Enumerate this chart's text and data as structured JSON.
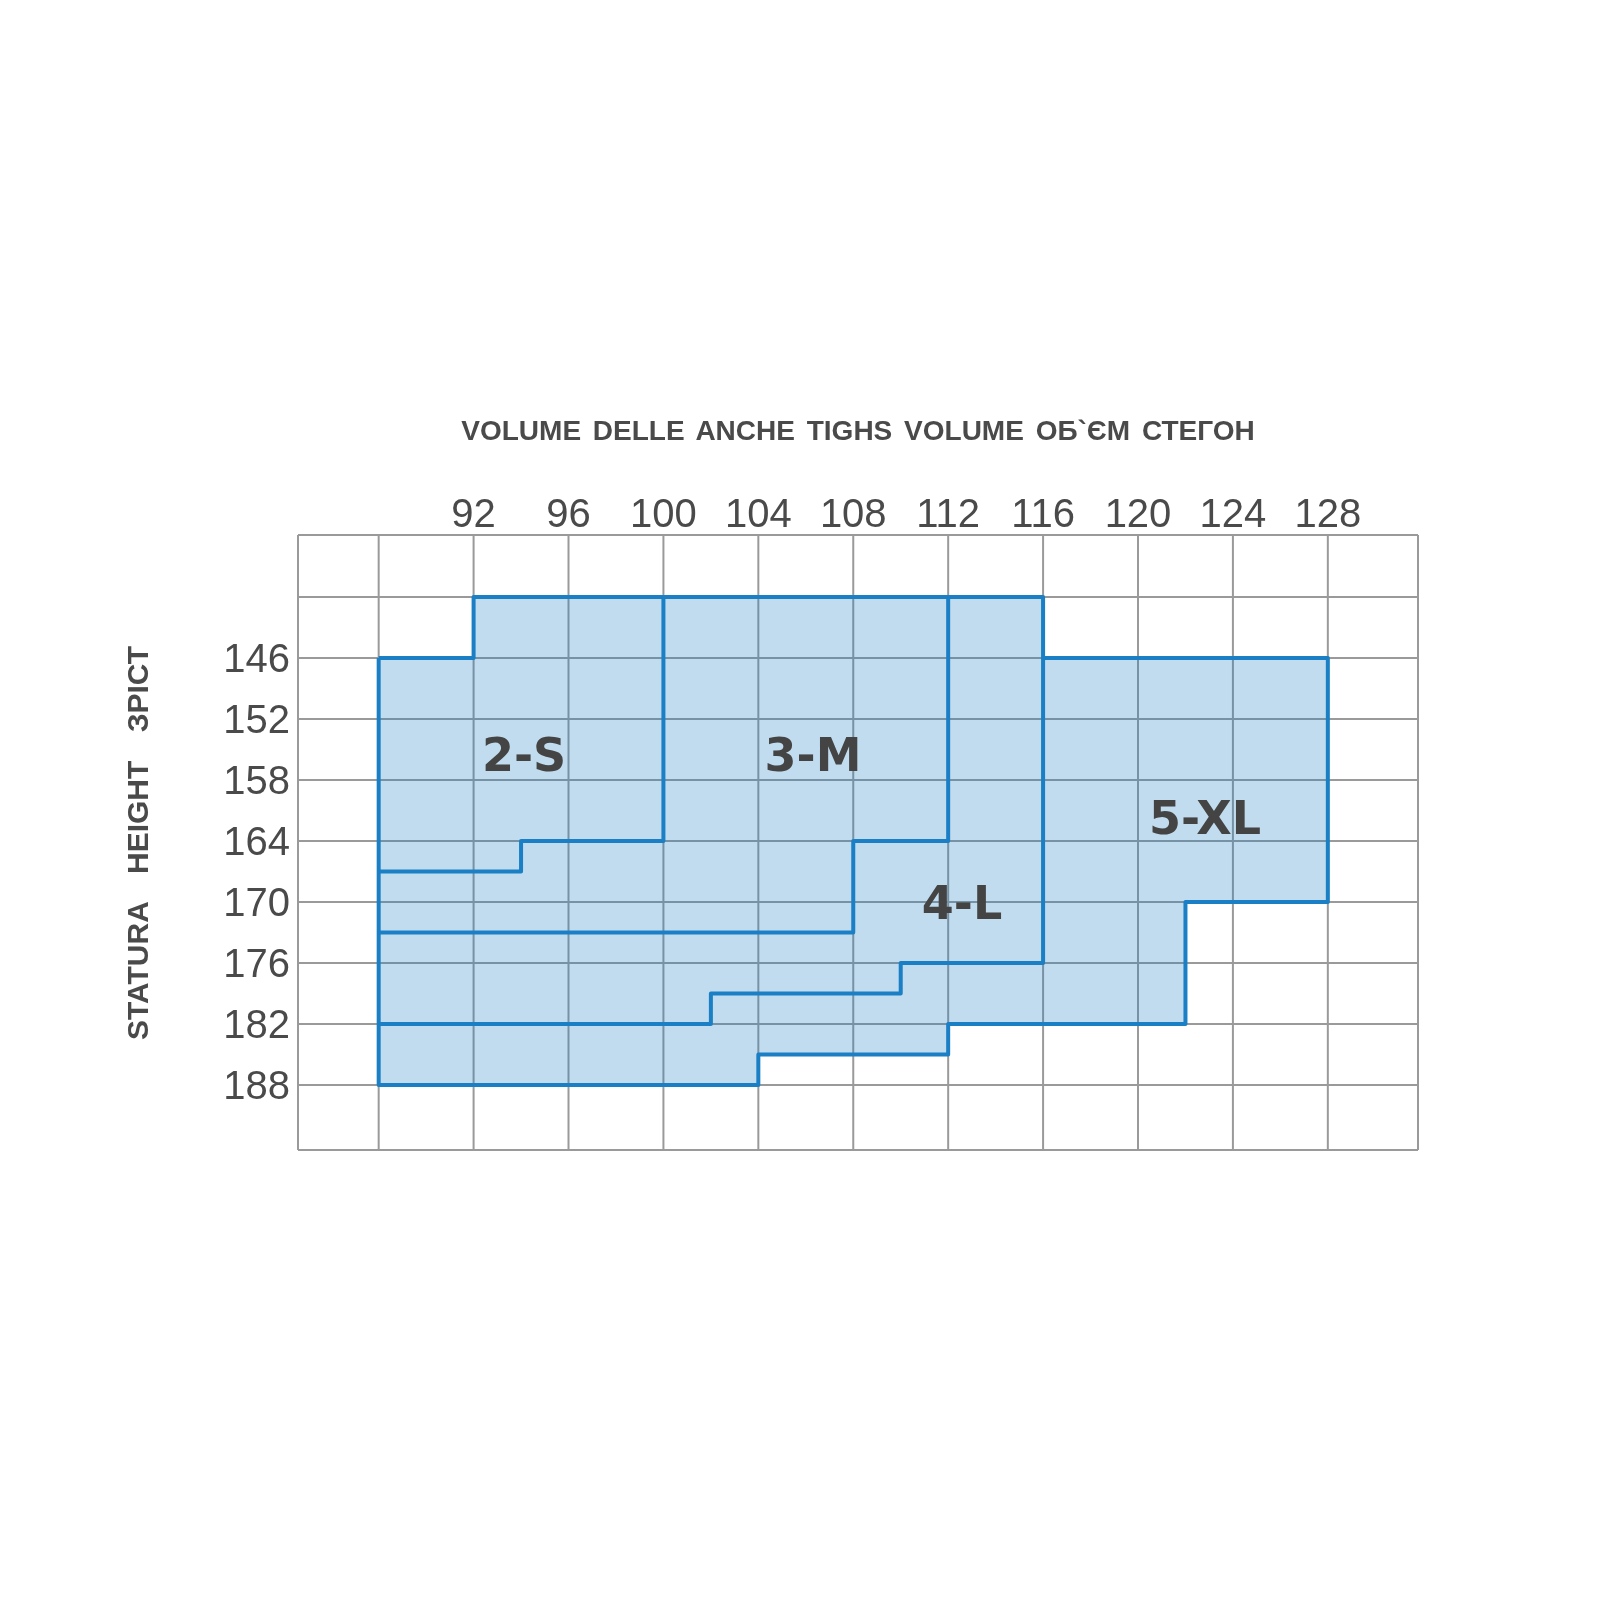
{
  "chart_data": {
    "type": "line",
    "xlabel": "VOLUME DELLE ANCHE TIGHS VOLUME ОБ`ЄМ СТЕГОН",
    "ylabel": "STATURA HEIGHT ЗРІСТ",
    "xlim": [
      84.6,
      131.8
    ],
    "ylim": [
      194.4,
      133.9
    ],
    "xticks": [
      {
        "value": 88,
        "label": null
      },
      92,
      96,
      100,
      104,
      108,
      112,
      116,
      120,
      124,
      128
    ],
    "yticks": [
      {
        "value": 140,
        "label": null
      },
      146,
      152,
      158,
      164,
      170,
      176,
      182,
      188
    ],
    "grid": true,
    "legend": false,
    "marker": "none",
    "line_style": "solid",
    "series": [
      {
        "type": "area",
        "color": "#1a7fc4",
        "x": [
          88,
          92,
          92,
          116,
          116,
          128,
          128,
          122,
          122,
          112,
          112,
          104,
          104,
          88,
          88
        ],
        "values": [
          146,
          146,
          140,
          140,
          146,
          146,
          170,
          170,
          182,
          182,
          185,
          185,
          188,
          188,
          146
        ]
      },
      {
        "color": "#1a7fc4",
        "x": [
          100,
          100,
          94,
          94,
          88
        ],
        "values": [
          140,
          164,
          164,
          167,
          167
        ]
      },
      {
        "color": "#1a7fc4",
        "x": [
          112,
          112,
          108,
          108,
          88
        ],
        "values": [
          140,
          164,
          164,
          173,
          173
        ]
      },
      {
        "color": "#1a7fc4",
        "x": [
          116,
          116,
          110,
          110,
          102,
          102,
          88
        ],
        "values": [
          146,
          176,
          176,
          179,
          179,
          182,
          182
        ]
      }
    ],
    "annotations": [
      "2-S",
      "3-M",
      "4-L",
      "5-XL"
    ]
  }
}
